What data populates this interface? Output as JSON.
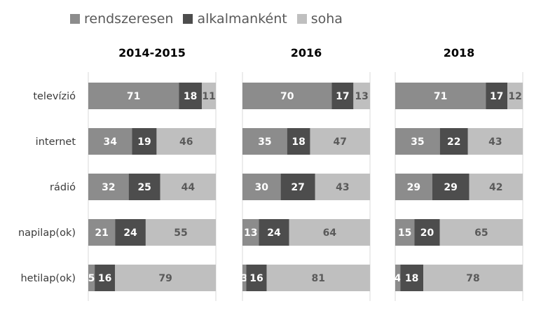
{
  "chart_data": {
    "type": "bar",
    "stacked": true,
    "orientation": "horizontal",
    "percent_scale": true,
    "legend_position": "top",
    "grid": false,
    "categories": [
      "televízió",
      "internet",
      "rádió",
      "napilap(ok)",
      "hetilap(ok)"
    ],
    "series_info": [
      {
        "name": "rendszeresen",
        "color": "#8c8c8c",
        "label_color": "#ffffff"
      },
      {
        "name": "alkalmanként",
        "color": "#4d4d4d",
        "label_color": "#ffffff"
      },
      {
        "name": "soha",
        "color": "#bfbfbf",
        "label_color": "#5a5a5a"
      }
    ],
    "panels": [
      {
        "title": "2014-2015",
        "values": [
          [
            71,
            18,
            11
          ],
          [
            34,
            19,
            46
          ],
          [
            32,
            25,
            44
          ],
          [
            21,
            24,
            55
          ],
          [
            5,
            16,
            79
          ]
        ]
      },
      {
        "title": "2016",
        "values": [
          [
            70,
            17,
            13
          ],
          [
            35,
            18,
            47
          ],
          [
            30,
            27,
            43
          ],
          [
            13,
            24,
            64
          ],
          [
            3,
            16,
            81
          ]
        ]
      },
      {
        "title": "2018",
        "values": [
          [
            71,
            17,
            12
          ],
          [
            35,
            22,
            43
          ],
          [
            29,
            29,
            42
          ],
          [
            15,
            20,
            65
          ],
          [
            4,
            18,
            78
          ]
        ]
      }
    ]
  }
}
